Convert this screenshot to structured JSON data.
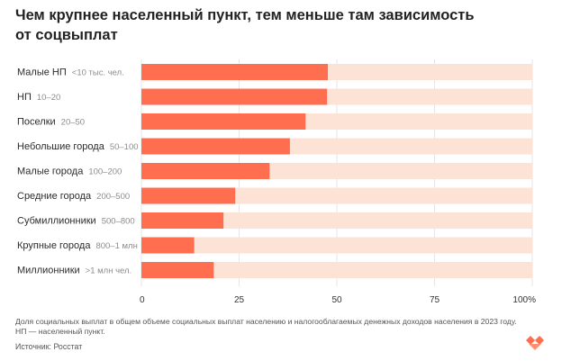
{
  "title": {
    "line1": "Чем крупнее населенный пункт, тем меньше там зависимость",
    "line2": "от соцвыплат"
  },
  "chart_data": {
    "type": "bar",
    "orientation": "horizontal",
    "categories": [
      {
        "label": "Малые НП",
        "range": "<10 тыс. чел."
      },
      {
        "label": "НП",
        "range": "10–20"
      },
      {
        "label": "Поселки",
        "range": "20–50"
      },
      {
        "label": "Небольшие города",
        "range": "50–100"
      },
      {
        "label": "Малые города",
        "range": "100–200"
      },
      {
        "label": "Средние города",
        "range": "200–500"
      },
      {
        "label": "Субмиллионники",
        "range": "500–800"
      },
      {
        "label": "Крупные города",
        "range": "800–1 млн"
      },
      {
        "label": "Миллионники",
        "range": ">1 млн чел."
      }
    ],
    "values": [
      47.7,
      47.5,
      42.0,
      38.0,
      32.8,
      24.0,
      21.0,
      13.5,
      18.5
    ],
    "xlim": [
      0,
      100
    ],
    "xticks": [
      "0",
      "25",
      "50",
      "75",
      "100%"
    ],
    "colors": {
      "bar": "#ff6f4f",
      "track": "#fde2d6"
    }
  },
  "footnote": {
    "line1": "Доля социальных выплат в общем объеме социальных выплат населению и налогооблагаемых денежных доходов населения в 2023 году.",
    "line2": "НП — населенный пункт."
  },
  "source": "Источник: Росстат"
}
